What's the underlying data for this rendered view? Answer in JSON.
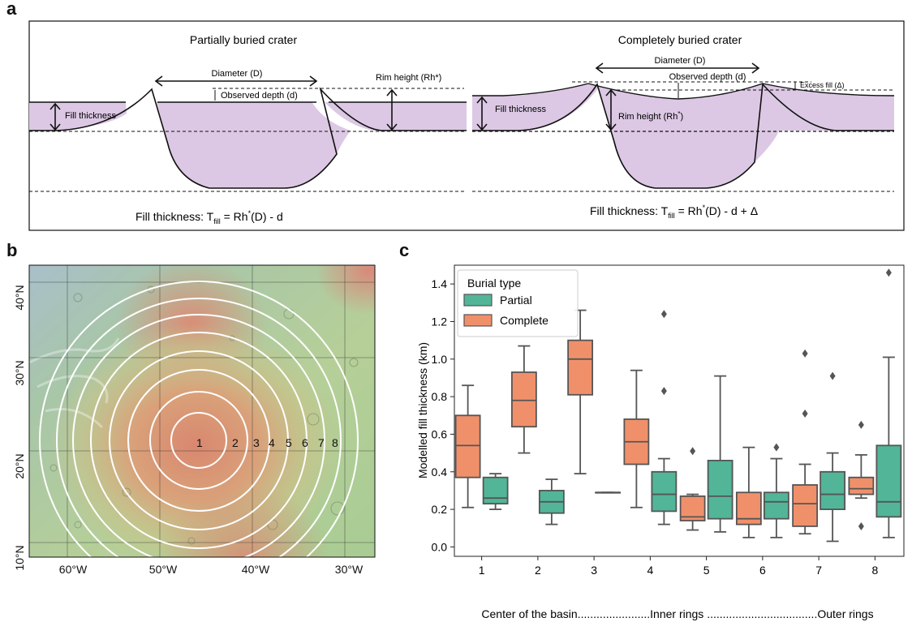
{
  "figure": {
    "panel_a": {
      "letter": "a",
      "left": {
        "title": "Partially buried crater",
        "diameter_label": "Diameter (D)",
        "observed_depth_label": "Observed depth (d)",
        "rim_height_label": "Rim height (Rh*)",
        "fill_thickness_label": "Fill thickness",
        "formula_prefix": "Fill thickness: T",
        "formula_sub": "fill",
        "formula_body": " = Rh",
        "formula_sup": "*",
        "formula_tail": "(D) - d"
      },
      "right": {
        "title": "Completely buried crater",
        "diameter_label": "Diameter (D)",
        "observed_depth_label": "Observed depth (d)",
        "excess_fill_label": "Excess fill (Δ)",
        "rim_height_label": "Rim height (Rh",
        "rim_height_sup": "*",
        "rim_height_tail": ")",
        "fill_thickness_label": "Fill thickness",
        "formula_prefix": "Fill thickness: T",
        "formula_sub": "fill",
        "formula_body": " = Rh",
        "formula_sup": "*",
        "formula_tail": "(D) - d + Δ"
      },
      "fill_color": "#dcc8e4"
    },
    "panel_b": {
      "letter": "b",
      "lat_labels": [
        "40°N",
        "30°N",
        "20°N",
        "10°N"
      ],
      "lon_labels": [
        "60°W",
        "50°W",
        "40°W",
        "30°W"
      ],
      "ring_labels": [
        "1",
        "2",
        "3",
        "4",
        "5",
        "6",
        "7",
        "8"
      ]
    },
    "panel_c": {
      "letter": "c"
    }
  },
  "chart_data": {
    "type": "box",
    "ylabel": "Modelled fill thickness (km)",
    "xlabel": "Center of the basin.......................Inner rings ...................................Outer rings",
    "ylim": [
      -0.05,
      1.5
    ],
    "yticks": [
      "0.0",
      "0.2",
      "0.4",
      "0.6",
      "0.8",
      "1.0",
      "1.2",
      "1.4"
    ],
    "categories": [
      "1",
      "2",
      "3",
      "4",
      "5",
      "6",
      "7",
      "8"
    ],
    "legend": {
      "title": "Burial type",
      "placement": "top-left",
      "entries": [
        "Partial",
        "Complete"
      ]
    },
    "colors": {
      "Complete": "#f0906a",
      "Partial": "#52b598",
      "line": "#555555"
    },
    "series": [
      {
        "name": "Complete",
        "boxes": [
          {
            "cat": 1,
            "whislo": 0.21,
            "q1": 0.37,
            "med": 0.54,
            "q3": 0.7,
            "whishi": 0.86,
            "fliers": []
          },
          {
            "cat": 2,
            "whislo": 0.5,
            "q1": 0.64,
            "med": 0.78,
            "q3": 0.93,
            "whishi": 1.07,
            "fliers": []
          },
          {
            "cat": 3,
            "whislo": 0.39,
            "q1": 0.81,
            "med": 1.0,
            "q3": 1.1,
            "whishi": 1.26,
            "fliers": []
          },
          {
            "cat": 4,
            "whislo": 0.21,
            "q1": 0.44,
            "med": 0.56,
            "q3": 0.68,
            "whishi": 0.94,
            "fliers": []
          },
          {
            "cat": 5,
            "whislo": 0.09,
            "q1": 0.14,
            "med": 0.16,
            "q3": 0.27,
            "whishi": 0.28,
            "fliers": [
              0.51
            ]
          },
          {
            "cat": 6,
            "whislo": 0.05,
            "q1": 0.12,
            "med": 0.15,
            "q3": 0.29,
            "whishi": 0.53,
            "fliers": []
          },
          {
            "cat": 7,
            "whislo": 0.07,
            "q1": 0.11,
            "med": 0.23,
            "q3": 0.33,
            "whishi": 0.44,
            "fliers": [
              0.71,
              1.03
            ]
          },
          {
            "cat": 8,
            "whislo": 0.26,
            "q1": 0.28,
            "med": 0.31,
            "q3": 0.37,
            "whishi": 0.49,
            "fliers": [
              0.65,
              0.11
            ]
          }
        ]
      },
      {
        "name": "Partial",
        "boxes": [
          {
            "cat": 1,
            "whislo": 0.2,
            "q1": 0.23,
            "med": 0.26,
            "q3": 0.37,
            "whishi": 0.39,
            "fliers": []
          },
          {
            "cat": 2,
            "whislo": 0.12,
            "q1": 0.18,
            "med": 0.24,
            "q3": 0.3,
            "whishi": 0.36,
            "fliers": []
          },
          {
            "cat": 3,
            "whislo": 0.29,
            "q1": 0.29,
            "med": 0.29,
            "q3": 0.29,
            "whishi": 0.29,
            "fliers": []
          },
          {
            "cat": 4,
            "whislo": 0.12,
            "q1": 0.19,
            "med": 0.28,
            "q3": 0.4,
            "whishi": 0.47,
            "fliers": [
              0.83,
              1.24
            ]
          },
          {
            "cat": 5,
            "whislo": 0.08,
            "q1": 0.15,
            "med": 0.27,
            "q3": 0.46,
            "whishi": 0.91,
            "fliers": []
          },
          {
            "cat": 6,
            "whislo": 0.05,
            "q1": 0.15,
            "med": 0.24,
            "q3": 0.29,
            "whishi": 0.47,
            "fliers": [
              0.53
            ]
          },
          {
            "cat": 7,
            "whislo": 0.03,
            "q1": 0.2,
            "med": 0.28,
            "q3": 0.4,
            "whishi": 0.5,
            "fliers": [
              0.91
            ]
          },
          {
            "cat": 8,
            "whislo": 0.05,
            "q1": 0.16,
            "med": 0.24,
            "q3": 0.54,
            "whishi": 1.01,
            "fliers": [
              1.46
            ]
          }
        ]
      }
    ]
  }
}
